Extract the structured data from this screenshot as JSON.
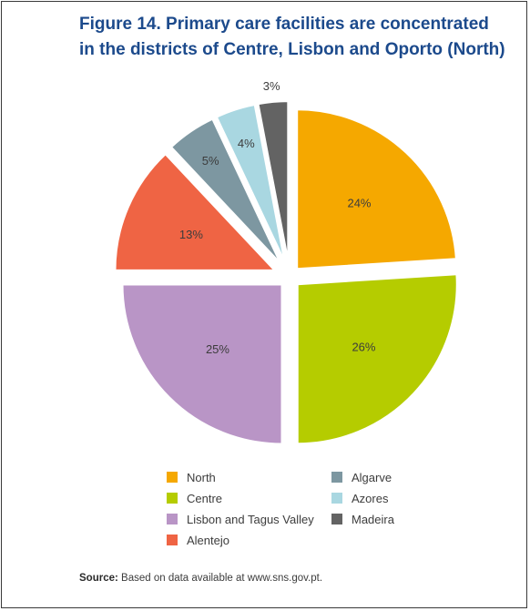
{
  "title": "Figure 14. Primary care facilities are concentrated in the districts of Centre, Lisbon and Oporto (North)",
  "source": {
    "label": "Source:",
    "text": "Based on data available at www.sns.gov.pt."
  },
  "chart_data": {
    "type": "pie",
    "exploded": true,
    "legend_position": "bottom",
    "slices": [
      {
        "name": "North",
        "value": 24,
        "label": "24%",
        "color": "#f5a800"
      },
      {
        "name": "Centre",
        "value": 26,
        "label": "26%",
        "color": "#b5cc00"
      },
      {
        "name": "Lisbon and Tagus Valley",
        "value": 25,
        "label": "25%",
        "color": "#b995c6"
      },
      {
        "name": "Alentejo",
        "value": 13,
        "label": "13%",
        "color": "#ef6444"
      },
      {
        "name": "Algarve",
        "value": 5,
        "label": "5%",
        "color": "#7d97a1"
      },
      {
        "name": "Azores",
        "value": 4,
        "label": "4%",
        "color": "#a9d7e1"
      },
      {
        "name": "Madeira",
        "value": 3,
        "label": "3%",
        "color": "#636363"
      }
    ]
  }
}
